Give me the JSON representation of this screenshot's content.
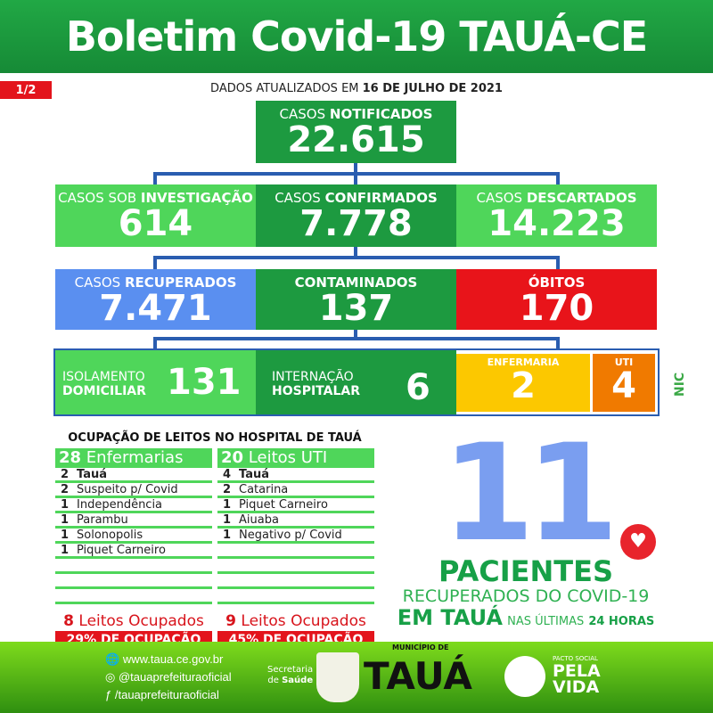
{
  "header": {
    "title": "Boletim Covid-19 TAUÁ-CE",
    "page": "1/2",
    "updated_prefix": "DADOS ATUALIZADOS EM",
    "updated_date": "16 DE JULHO DE 2021"
  },
  "notificados": {
    "pre": "CASOS",
    "bold": "NOTIFICADOS",
    "value": "22.615"
  },
  "investigacao": {
    "pre": "CASOS SOB",
    "bold": "INVESTIGAÇÃO",
    "value": "614"
  },
  "confirmados": {
    "pre": "CASOS",
    "bold": "CONFIRMADOS",
    "value": "7.778"
  },
  "descartados": {
    "pre": "CASOS",
    "bold": "DESCARTADOS",
    "value": "14.223"
  },
  "recuperados": {
    "pre": "CASOS",
    "bold": "RECUPERADOS",
    "value": "7.471"
  },
  "contaminados": {
    "bold": "CONTAMINADOS",
    "value": "137"
  },
  "obitos": {
    "bold": "ÓBITOS",
    "value": "170"
  },
  "isolamento": {
    "l1": "ISOLAMENTO",
    "l2": "DOMICILIAR",
    "value": "131"
  },
  "internacao": {
    "l1": "INTERNAÇÃO",
    "l2": "HOSPITALAR",
    "value": "6"
  },
  "enfermaria": {
    "label": "ENFERMARIA",
    "value": "2"
  },
  "uti": {
    "label": "UTI",
    "value": "4"
  },
  "hospital": {
    "title": "OCUPAÇÃO DE LEITOS NO HOSPITAL DE TAUÁ",
    "enf": {
      "count": "28",
      "label": "Enfermarias",
      "rows": [
        [
          "2",
          "Tauá"
        ],
        [
          "2",
          "Suspeito p/ Covid"
        ],
        [
          "1",
          "Independência"
        ],
        [
          "1",
          "Parambu"
        ],
        [
          "1",
          "Solonopolis"
        ],
        [
          "1",
          "Piquet Carneiro"
        ],
        [
          "",
          ""
        ],
        [
          "",
          ""
        ],
        [
          "",
          ""
        ]
      ],
      "occ_n": "8",
      "occ_label": "Leitos Ocupados",
      "pct": "29% DE OCUPAÇÃO"
    },
    "uti": {
      "count": "20",
      "label": "Leitos UTI",
      "rows": [
        [
          "4",
          "Tauá"
        ],
        [
          "2",
          "Catarina"
        ],
        [
          "1",
          "Piquet Carneiro"
        ],
        [
          "1",
          "Aiuaba"
        ],
        [
          "1",
          "Negativo p/ Covid"
        ],
        [
          "",
          ""
        ],
        [
          "",
          ""
        ],
        [
          "",
          ""
        ],
        [
          "",
          ""
        ]
      ],
      "occ_n": "9",
      "occ_label": "Leitos Ocupados",
      "pct": "45% DE OCUPAÇÃO"
    }
  },
  "recovered24": {
    "value": "11",
    "l1": "PACIENTES",
    "l2": "RECUPERADOS DO COVID-19",
    "l3": "EM TAUÁ",
    "l4a": "NAS ÚLTIMAS",
    "l4b": "24 HORAS"
  },
  "footer": {
    "site": "www.taua.ce.gov.br",
    "instagram": "@tauaprefeituraoficial",
    "facebook": "/tauaprefeituraoficial",
    "sec1": "Secretaria",
    "sec2a": "de",
    "sec2b": "Saúde",
    "mun": "MUNICÍPIO DE",
    "city": "TAUÁ",
    "pacto": "PACTO SOCIAL",
    "pela": "PELA",
    "vida": "VIDA"
  },
  "side_logo": "NIC",
  "colors": {
    "dark_green": "#1d9a40",
    "light_green": "#4fd65a",
    "blue": "#5a8ff0",
    "red": "#e8141a",
    "yellow": "#fcc800",
    "orange": "#f07a00"
  }
}
